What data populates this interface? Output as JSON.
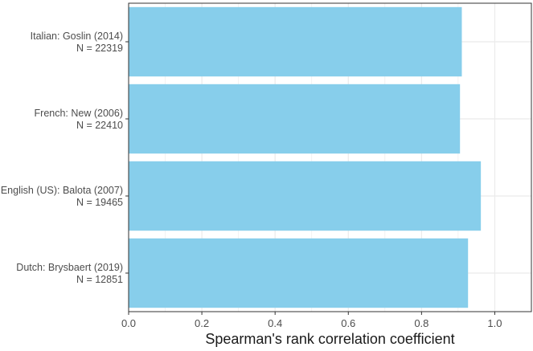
{
  "chart_data": {
    "type": "bar",
    "orientation": "horizontal",
    "categories": [
      [
        "Italian: Goslin (2014)",
        "N = 22319"
      ],
      [
        "French: New (2006)",
        "N = 22410"
      ],
      [
        "English (US): Balota (2007)",
        "N = 19465"
      ],
      [
        "Dutch: Brysbaert (2019)",
        "N = 12851"
      ]
    ],
    "values": [
      0.91,
      0.905,
      0.962,
      0.927
    ],
    "xlabel": "Spearman's rank correlation coefficient",
    "ylabel": "",
    "xlim": [
      0,
      1.1
    ],
    "xticks": [
      0.0,
      0.2,
      0.4,
      0.6,
      0.8,
      1.0
    ],
    "xtick_labels": [
      "0.0",
      "0.2",
      "0.4",
      "0.6",
      "0.8",
      "1.0"
    ],
    "grid": true,
    "bar_color": "#87CEEB",
    "grid_color": "#ebebeb",
    "panel_border_color": "#333333"
  }
}
